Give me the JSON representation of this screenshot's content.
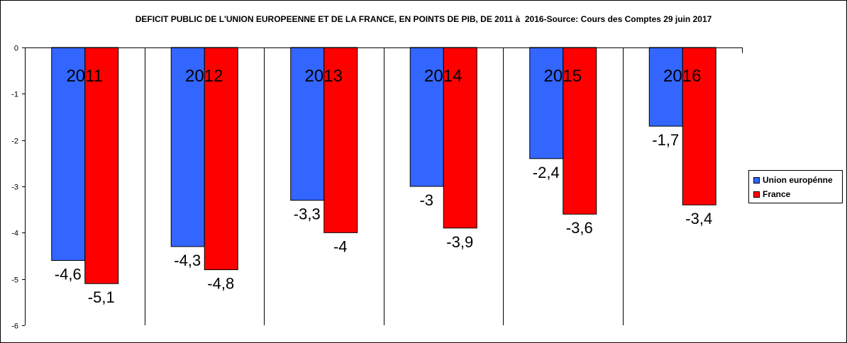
{
  "chart_data": {
    "type": "bar",
    "title": "DEFICIT PUBLIC DE L'UNION EUROPEENNE ET DE LA FRANCE, EN POINTS DE PIB, DE 2011 à  2016-Source: Cours des Comptes 29 juin 2017",
    "categories": [
      "2011",
      "2012",
      "2013",
      "2014",
      "2015",
      "2016"
    ],
    "series": [
      {
        "name": "Union europénne",
        "color": "#3366ff",
        "values": [
          -4.6,
          -4.3,
          -3.3,
          -3.0,
          -2.4,
          -1.7
        ],
        "labels": [
          "-4,6",
          "-4,3",
          "-3,3",
          "-3",
          "-2,4",
          "-1,7"
        ]
      },
      {
        "name": "France",
        "color": "#ff0000",
        "values": [
          -5.1,
          -4.8,
          -4.0,
          -3.9,
          -3.6,
          -3.4
        ],
        "labels": [
          "-5,1",
          "-4,8",
          "-4",
          "-3,9",
          "-3,6",
          "-3,4"
        ]
      }
    ],
    "ylim": [
      -6,
      0
    ],
    "yticks": [
      0,
      -1,
      -2,
      -3,
      -4,
      -5,
      -6
    ],
    "grid": false,
    "category_separators": true,
    "legend_position": "right"
  }
}
